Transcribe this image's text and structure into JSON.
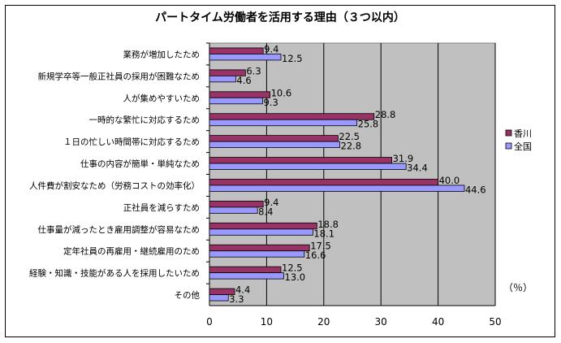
{
  "chart_data": {
    "type": "bar",
    "orientation": "horizontal",
    "title": "パートタイム労働者を活用する理由（３つ以内）",
    "unit_label": "（％）",
    "categories": [
      "業務が増加したため",
      "新規学卒等一般正社員の採用が困難なため",
      "人が集めやすいため",
      "一時的な繁忙に対応するため",
      "１日の忙しい時間帯に対応するため",
      "仕事の内容が簡単・単純なため",
      "人件費が割安なため（労務コストの効率化）",
      "正社員を減らすため",
      "仕事量が減ったとき雇用調整が容易なため",
      "定年社員の再雇用・継続雇用のため",
      "経験・知識・技能がある人を採用したいため",
      "その他"
    ],
    "series": [
      {
        "name": "香川",
        "color": "#993366",
        "values": [
          9.4,
          6.3,
          10.6,
          28.8,
          22.5,
          31.9,
          40.0,
          9.4,
          18.8,
          17.5,
          12.5,
          4.4
        ],
        "labels": [
          "9.4",
          "6.3",
          "10.6",
          "28.8",
          "22.5",
          "31.9",
          "40.0",
          "9.4",
          "18.8",
          "17.5",
          "12.5",
          "4.4"
        ]
      },
      {
        "name": "全国",
        "color": "#9999ff",
        "values": [
          12.5,
          4.6,
          9.3,
          25.8,
          22.8,
          34.4,
          44.6,
          8.4,
          18.1,
          16.6,
          13.0,
          3.3
        ],
        "labels": [
          "12.5",
          "4.6",
          "9.3",
          "25.8",
          "22.8",
          "34.4",
          "44.6",
          "8.4",
          "18.1",
          "16.6",
          "13.0",
          "3.3"
        ]
      }
    ],
    "xlim": [
      0,
      50
    ],
    "xticks": [
      "0",
      "10",
      "20",
      "30",
      "40",
      "50"
    ],
    "grid": true,
    "plot_background": "#c0c0c0",
    "legend_position": "right"
  }
}
